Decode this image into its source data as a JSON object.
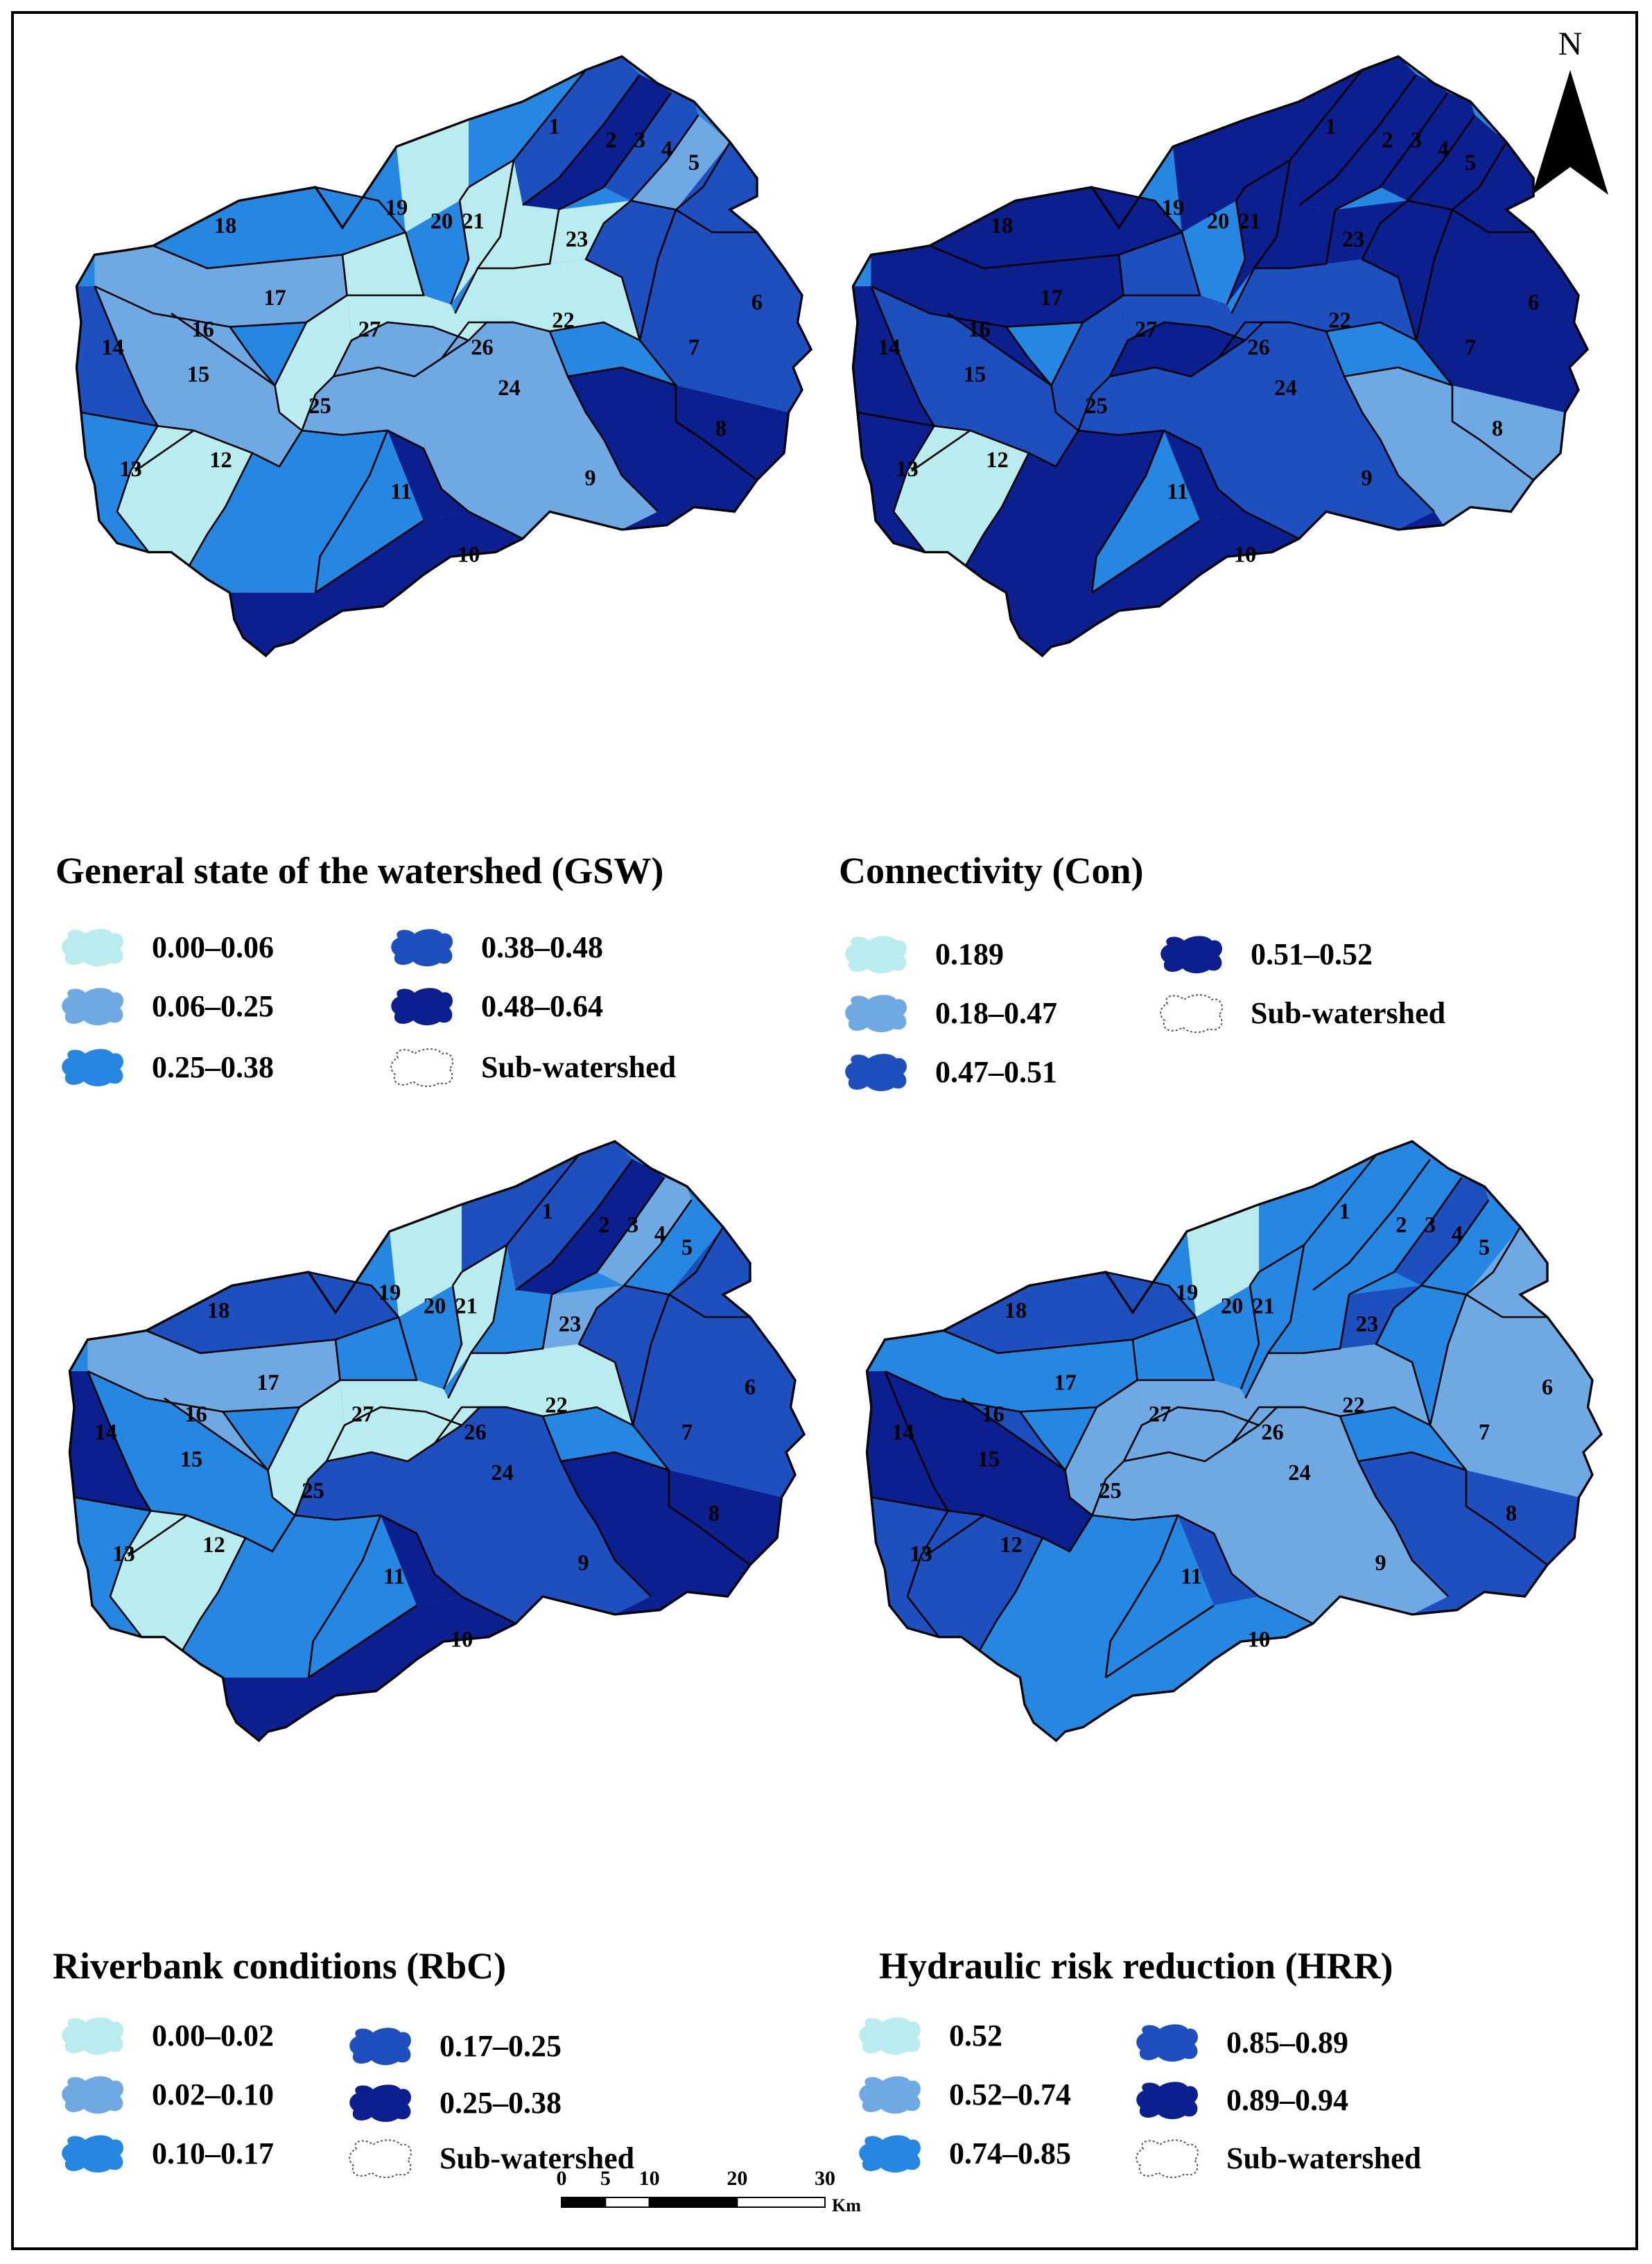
{
  "north_label": "N",
  "scale": {
    "ticks": [
      "0",
      "5",
      "10",
      "20",
      "30"
    ],
    "unit": "Km"
  },
  "sub_watershed_label": "Sub-watershed",
  "colors": {
    "c1": "#b8ecee",
    "c2": "#6fa9e3",
    "c3": "#2587e1",
    "c4": "#1e4fbf",
    "c5": "#0b1f8f",
    "none": "#ffffff"
  },
  "panels": [
    {
      "id": "gsw",
      "title": "General state of the watershed (GSW)",
      "legend": [
        {
          "label": "0.00–0.06",
          "color": "c1"
        },
        {
          "label": "0.06–0.25",
          "color": "c2"
        },
        {
          "label": "0.25–0.38",
          "color": "c3"
        },
        {
          "label": "0.38–0.48",
          "color": "c4"
        },
        {
          "label": "0.48–0.64",
          "color": "c5"
        }
      ],
      "subwatershed_class": {
        "1": "c3",
        "2": "c4",
        "3": "c5",
        "4": "c4",
        "5": "c2",
        "6": "c4",
        "7": "c4",
        "8": "c5",
        "9": "c5",
        "10": "c5",
        "11": "c3",
        "12": "c1",
        "13": "c3",
        "14": "c4",
        "15": "c2",
        "16": "c2",
        "17": "c2",
        "18": "c3",
        "19": "c1",
        "20": "c1",
        "21": "c1",
        "22": "c1",
        "23": "c1",
        "24": "c2",
        "25": "c1",
        "26": "c2",
        "27": "c1"
      }
    },
    {
      "id": "con",
      "title": "Connectivity (Con)",
      "legend": [
        {
          "label": "0.189",
          "color": "c1"
        },
        {
          "label": "0.18–0.47",
          "color": "c2"
        },
        {
          "label": "0.47–0.51",
          "color": "c4"
        },
        {
          "label": "0.51–0.52",
          "color": "c5"
        }
      ],
      "subwatershed_class": {
        "1": "c5",
        "2": "c5",
        "3": "c5",
        "4": "c5",
        "5": "c5",
        "6": "c5",
        "7": "c5",
        "8": "c2",
        "9": "c5",
        "10": "c5",
        "11": "c5",
        "12": "c1",
        "13": "c5",
        "14": "c5",
        "15": "c4",
        "16": "c5",
        "17": "c5",
        "18": "c5",
        "19": "c5",
        "20": "c5",
        "21": "c5",
        "22": "c4",
        "23": "c5",
        "24": "c4",
        "25": "c4",
        "26": "c5",
        "27": "c4"
      }
    },
    {
      "id": "rbc",
      "title": "Riverbank conditions (RbC)",
      "legend": [
        {
          "label": "0.00–0.02",
          "color": "c1"
        },
        {
          "label": "0.02–0.10",
          "color": "c2"
        },
        {
          "label": "0.10–0.17",
          "color": "c3"
        },
        {
          "label": "0.17–0.25",
          "color": "c4"
        },
        {
          "label": "0.25–0.38",
          "color": "c5"
        }
      ],
      "subwatershed_class": {
        "1": "c4",
        "2": "c4",
        "3": "c5",
        "4": "c2",
        "5": "c3",
        "6": "c4",
        "7": "c4",
        "8": "c5",
        "9": "c5",
        "10": "c5",
        "11": "c3",
        "12": "c1",
        "13": "c3",
        "14": "c5",
        "15": "c3",
        "16": "c2",
        "17": "c2",
        "18": "c4",
        "19": "c1",
        "20": "c1",
        "21": "c3",
        "22": "c1",
        "23": "c2",
        "24": "c4",
        "25": "c1",
        "26": "c1",
        "27": "c3"
      }
    },
    {
      "id": "hrr",
      "title": "Hydraulic risk reduction (HRR)",
      "legend": [
        {
          "label": "0.52",
          "color": "c1"
        },
        {
          "label": "0.52–0.74",
          "color": "c2"
        },
        {
          "label": "0.74–0.85",
          "color": "c3"
        },
        {
          "label": "0.85–0.89",
          "color": "c4"
        },
        {
          "label": "0.89–0.94",
          "color": "c5"
        }
      ],
      "subwatershed_class": {
        "1": "c3",
        "2": "c3",
        "3": "c3",
        "4": "c4",
        "5": "c3",
        "6": "c2",
        "7": "c3",
        "8": "c4",
        "9": "c4",
        "10": "c3",
        "11": "c3",
        "12": "c4",
        "13": "c4",
        "14": "c5",
        "15": "c5",
        "16": "c4",
        "17": "c3",
        "18": "c4",
        "19": "c1",
        "20": "c3",
        "21": "c3",
        "22": "c2",
        "23": "c4",
        "24": "c2",
        "25": "c2",
        "26": "c2",
        "27": "c3"
      }
    }
  ]
}
